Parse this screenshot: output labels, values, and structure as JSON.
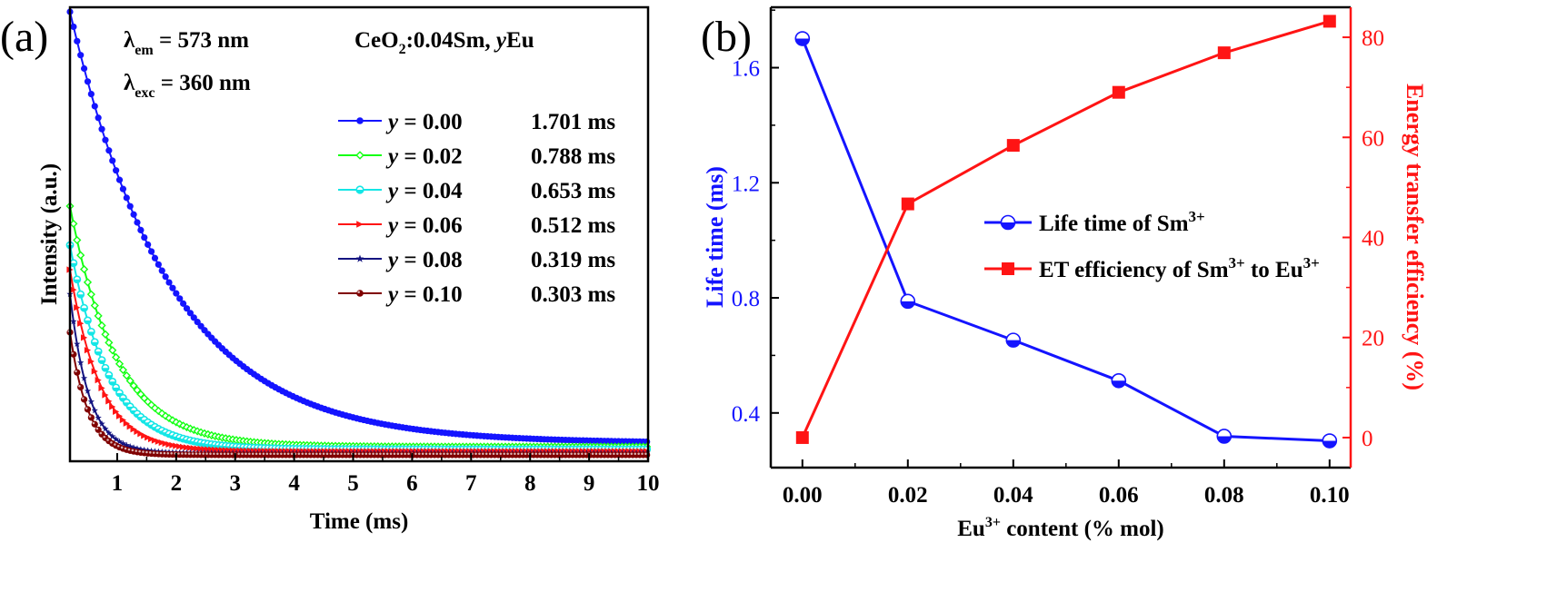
{
  "colors": {
    "blue": "#1414ff",
    "green": "#14ff14",
    "cyan": "#14e6e6",
    "red": "#ff1414",
    "navy": "#141480",
    "maroon": "#800000",
    "axis": "#000000"
  },
  "chart_data": [
    {
      "id": "a",
      "type": "line",
      "panel_label": "(a)",
      "xlabel": "Time (ms)",
      "ylabel": "Intensity (a.u.)",
      "xlim": [
        0.2,
        10
      ],
      "xticks": [
        1,
        2,
        3,
        4,
        5,
        6,
        7,
        8,
        9,
        10
      ],
      "yticks": [],
      "annotations": {
        "lambda_em": {
          "lambda": "λ",
          "sub": "em",
          "rest": " = 573 nm"
        },
        "lambda_exc": {
          "lambda": "λ",
          "sub": "exc",
          "rest": " = 360 nm"
        },
        "composition": {
          "base": "CeO",
          "sub": "2",
          "mid": ":0.04Sm, ",
          "var": "y",
          "end": "Eu"
        }
      },
      "y_label_var": "y",
      "series": [
        {
          "name": " = 0.00",
          "lifetime": "1.701 ms",
          "color": "#1414ff",
          "marker": "circle",
          "tau": 1.701,
          "amp": 0.95,
          "baseline": 0.04
        },
        {
          "name": " = 0.02",
          "lifetime": "0.788 ms",
          "color": "#14ff14",
          "marker": "diamond",
          "tau": 0.788,
          "amp": 0.53,
          "baseline": 0.032
        },
        {
          "name": " = 0.04",
          "lifetime": "0.653 ms",
          "color": "#14e6e6",
          "marker": "circle-half",
          "tau": 0.653,
          "amp": 0.45,
          "baseline": 0.026
        },
        {
          "name": " = 0.06",
          "lifetime": "0.512 ms",
          "color": "#ff1414",
          "marker": "triangle-right",
          "tau": 0.512,
          "amp": 0.4,
          "baseline": 0.022
        },
        {
          "name": " = 0.08",
          "lifetime": "0.319 ms",
          "color": "#141480",
          "marker": "star",
          "tau": 0.319,
          "amp": 0.35,
          "baseline": 0.018
        },
        {
          "name": " = 0.10",
          "lifetime": "0.303 ms",
          "color": "#800000",
          "marker": "circle-ball",
          "tau": 0.303,
          "amp": 0.27,
          "baseline": 0.014
        }
      ]
    },
    {
      "id": "b",
      "type": "line",
      "panel_label": "(b)",
      "xlabel": {
        "base": "Eu",
        "sup": "3+",
        "rest": " content (% mol)"
      },
      "ylabel_left": "Life time (ms)",
      "ylabel_right": "Energy transfer efficiency (%)",
      "x": [
        0.0,
        0.02,
        0.04,
        0.06,
        0.08,
        0.1
      ],
      "xtick_labels": [
        "0.00",
        "0.02",
        "0.04",
        "0.06",
        "0.08",
        "0.10"
      ],
      "xlim": [
        -0.006,
        0.104
      ],
      "ylim_left": [
        0.21,
        1.81
      ],
      "yticks_left": [
        0.4,
        0.8,
        1.2,
        1.6
      ],
      "ytick_labels_left": [
        "0.4",
        "0.8",
        "1.2",
        "1.6"
      ],
      "ylim_right": [
        -6,
        86
      ],
      "yticks_right": [
        0,
        20,
        40,
        60,
        80
      ],
      "ytick_labels_right": [
        "0",
        "20",
        "40",
        "60",
        "80"
      ],
      "series": [
        {
          "name": {
            "base": "Life time of Sm",
            "sup": "3+"
          },
          "axis": "left",
          "color": "#1414ff",
          "marker": "circle-half",
          "values": [
            1.701,
            0.788,
            0.653,
            0.512,
            0.319,
            0.303
          ]
        },
        {
          "name": {
            "p1": "ET efficiency of Sm",
            "s1": "3+",
            "p2": " to Eu",
            "s2": "3+"
          },
          "axis": "right",
          "color": "#ff1414",
          "marker": "square",
          "values": [
            0,
            46.7,
            58.4,
            69.0,
            76.9,
            83.2
          ]
        }
      ]
    }
  ]
}
